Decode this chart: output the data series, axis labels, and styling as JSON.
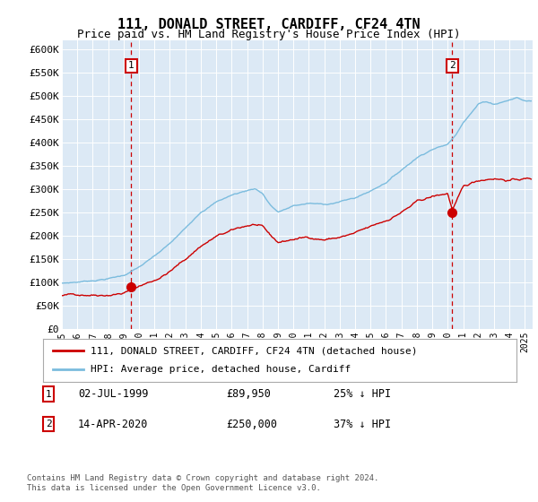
{
  "title": "111, DONALD STREET, CARDIFF, CF24 4TN",
  "subtitle": "Price paid vs. HM Land Registry's House Price Index (HPI)",
  "legend_line1": "111, DONALD STREET, CARDIFF, CF24 4TN (detached house)",
  "legend_line2": "HPI: Average price, detached house, Cardiff",
  "annotation1_label": "1",
  "annotation1_date": "02-JUL-1999",
  "annotation1_price": "£89,950",
  "annotation1_hpi": "25% ↓ HPI",
  "annotation1_year": 1999.5,
  "annotation1_value": 89950,
  "annotation2_label": "2",
  "annotation2_date": "14-APR-2020",
  "annotation2_price": "£250,000",
  "annotation2_hpi": "37% ↓ HPI",
  "annotation2_year": 2020.3,
  "annotation2_value": 250000,
  "footer": "Contains HM Land Registry data © Crown copyright and database right 2024.\nThis data is licensed under the Open Government Licence v3.0.",
  "hpi_color": "#7bbcde",
  "price_color": "#cc0000",
  "bg_color": "#dce9f5",
  "ylim": [
    0,
    620000
  ],
  "yticks": [
    0,
    50000,
    100000,
    150000,
    200000,
    250000,
    300000,
    350000,
    400000,
    450000,
    500000,
    550000,
    600000
  ],
  "xmin": 1995,
  "xmax": 2025.5
}
